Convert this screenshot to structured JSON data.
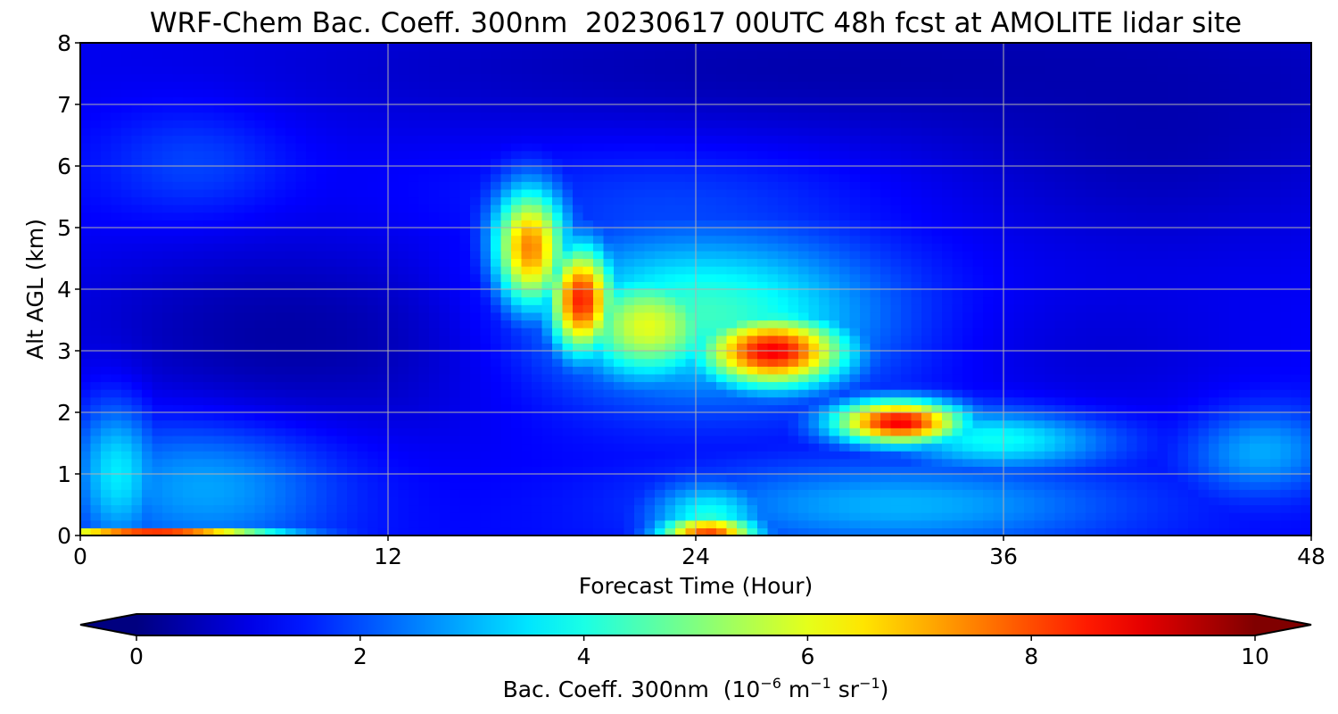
{
  "chart_data": {
    "type": "heatmap",
    "title": "WRF-Chem Bac. Coeff. 300nm  20230617 00UTC 48h fcst at AMOLITE lidar site",
    "xlabel": "Forecast Time (Hour)",
    "ylabel": "Alt AGL (km)",
    "xlim": [
      0,
      48
    ],
    "ylim": [
      0,
      8
    ],
    "xticks": [
      "0",
      "12",
      "24",
      "36",
      "48"
    ],
    "yticks": [
      "0",
      "1",
      "2",
      "3",
      "4",
      "5",
      "6",
      "7",
      "8"
    ],
    "grid": true,
    "colormap": "jet",
    "colorbar": {
      "orientation": "horizontal",
      "vmin": 0,
      "vmax": 10,
      "extend": "both",
      "ticks": [
        "0",
        "2",
        "4",
        "6",
        "8",
        "10"
      ],
      "label_prefix": "Bac. Coeff. 300nm  (10",
      "label_exp1": "−6",
      "label_mid": " m",
      "label_exp2": "−1",
      "label_mid2": " sr",
      "label_exp3": "−1",
      "label_suffix": ")"
    },
    "background_value": 1.3,
    "features": [
      {
        "name": "surface layer hour 0-8",
        "x": 3,
        "y": 0.03,
        "sx": 3.2,
        "sy": 0.06,
        "value": 9.5
      },
      {
        "name": "boundary layer hour 0-3",
        "x": 1.5,
        "y": 1.2,
        "sx": 1.2,
        "sy": 0.9,
        "value": 4.0
      },
      {
        "name": "boundary layer hour 3-8",
        "x": 5,
        "y": 1.0,
        "sx": 3.5,
        "sy": 0.9,
        "value": 3.2
      },
      {
        "name": "upper plume hour 17-18",
        "x": 17.5,
        "y": 4.6,
        "sx": 1.0,
        "sy": 0.7,
        "value": 8.7
      },
      {
        "name": "upper plume core hour 19-20",
        "x": 19.5,
        "y": 3.8,
        "sx": 0.9,
        "sy": 0.6,
        "value": 10.0
      },
      {
        "name": "plume hour 21-23",
        "x": 22,
        "y": 3.4,
        "sx": 2.0,
        "sy": 0.6,
        "value": 6.5
      },
      {
        "name": "plume core hour 24-30",
        "x": 27,
        "y": 3.0,
        "sx": 2.0,
        "sy": 0.4,
        "value": 9.0
      },
      {
        "name": "plume edge hour 20-30",
        "x": 24,
        "y": 3.6,
        "sx": 5.0,
        "sy": 0.9,
        "value": 4.5
      },
      {
        "name": "lower plume hour 30-35",
        "x": 32,
        "y": 1.85,
        "sx": 1.8,
        "sy": 0.25,
        "value": 9.2
      },
      {
        "name": "lower plume tail hour 34-40",
        "x": 36,
        "y": 1.6,
        "sx": 3.0,
        "sy": 0.35,
        "value": 4.2
      },
      {
        "name": "surface hour 23-26",
        "x": 24.5,
        "y": 0.05,
        "sx": 1.3,
        "sy": 0.2,
        "value": 8.0
      },
      {
        "name": "surface bulge hour 23-26",
        "x": 24.5,
        "y": 0.3,
        "sx": 1.6,
        "sy": 0.4,
        "value": 4.0
      },
      {
        "name": "low layer hour 26-40",
        "x": 32,
        "y": 0.5,
        "sx": 6.0,
        "sy": 0.5,
        "value": 3.0
      },
      {
        "name": "low layer hour 44-48",
        "x": 46,
        "y": 1.4,
        "sx": 2.0,
        "sy": 0.5,
        "value": 3.0
      },
      {
        "name": "upper haze hour 3-8",
        "x": 4.5,
        "y": 6.1,
        "sx": 2.5,
        "sy": 0.7,
        "value": 2.1
      },
      {
        "name": "upper haze hour 17-30",
        "x": 23,
        "y": 5.2,
        "sx": 5.5,
        "sy": 1.0,
        "value": 2.0
      }
    ],
    "clean_layers": [
      {
        "name": "clean mid layer hour 0-17",
        "x": 8,
        "y": 3.2,
        "sx": 6.5,
        "sy": 1.2,
        "value": 0.2
      },
      {
        "name": "clean top layer",
        "x": 30,
        "y": 7.6,
        "sx": 18.0,
        "sy": 0.9,
        "value": 0.3
      },
      {
        "name": "clean top-right",
        "x": 42,
        "y": 6.5,
        "sx": 6.0,
        "sy": 1.5,
        "value": 0.4
      },
      {
        "name": "clean mid hour 36-48",
        "x": 40,
        "y": 3.0,
        "sx": 4.0,
        "sy": 0.8,
        "value": 0.8
      }
    ]
  }
}
